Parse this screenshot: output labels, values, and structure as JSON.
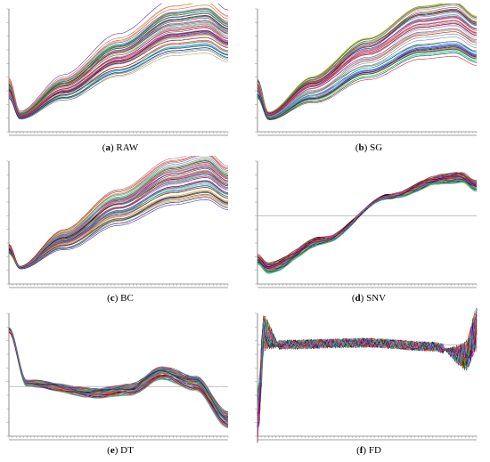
{
  "figure": {
    "panels": [
      {
        "id": "a",
        "tag": "a",
        "label": "RAW",
        "shape": "raw",
        "zero_line": false
      },
      {
        "id": "b",
        "tag": "b",
        "label": "SG",
        "shape": "raw",
        "zero_line": false
      },
      {
        "id": "c",
        "tag": "c",
        "label": "BC",
        "shape": "bc",
        "zero_line": false
      },
      {
        "id": "d",
        "tag": "d",
        "label": "SNV",
        "shape": "snv",
        "zero_line": true
      },
      {
        "id": "e",
        "tag": "e",
        "label": "DT",
        "shape": "dt",
        "zero_line": true
      },
      {
        "id": "f",
        "tag": "f",
        "label": "FD",
        "shape": "fd",
        "zero_line": true
      }
    ]
  },
  "chart_data": [
    {
      "type": "line",
      "panel": "a",
      "title": "RAW",
      "series_count": "many spectra",
      "profile": [
        [
          0,
          0.35
        ],
        [
          0.05,
          0.12
        ],
        [
          0.25,
          0.35
        ],
        [
          0.5,
          0.62
        ],
        [
          0.75,
          0.85
        ],
        [
          0.9,
          0.88
        ],
        [
          1,
          0.78
        ]
      ]
    },
    {
      "type": "line",
      "panel": "b",
      "title": "SG",
      "series_count": "many spectra",
      "profile": [
        [
          0,
          0.35
        ],
        [
          0.05,
          0.12
        ],
        [
          0.25,
          0.35
        ],
        [
          0.5,
          0.62
        ],
        [
          0.75,
          0.85
        ],
        [
          0.9,
          0.88
        ],
        [
          1,
          0.78
        ]
      ]
    },
    {
      "type": "line",
      "panel": "c",
      "title": "BC",
      "series_count": "many spectra",
      "profile": [
        [
          0,
          0.2
        ],
        [
          0.05,
          0.02
        ],
        [
          0.25,
          0.28
        ],
        [
          0.5,
          0.58
        ],
        [
          0.75,
          0.82
        ],
        [
          0.9,
          0.88
        ],
        [
          1,
          0.76
        ]
      ]
    },
    {
      "type": "line",
      "panel": "d",
      "title": "SNV",
      "series_count": "many spectra",
      "profile": [
        [
          0,
          -1.6
        ],
        [
          0.05,
          -1.9
        ],
        [
          0.3,
          -0.9
        ],
        [
          0.6,
          0.7
        ],
        [
          0.85,
          1.35
        ],
        [
          0.93,
          1.4
        ],
        [
          1,
          1.1
        ]
      ]
    },
    {
      "type": "line",
      "panel": "e",
      "title": "DT",
      "series_count": "many spectra",
      "profile": [
        [
          0,
          1.7
        ],
        [
          0.08,
          0.1
        ],
        [
          0.4,
          -0.2
        ],
        [
          0.55,
          -0.1
        ],
        [
          0.7,
          0.4
        ],
        [
          0.85,
          0.1
        ],
        [
          1,
          -1.0
        ]
      ]
    },
    {
      "type": "line",
      "panel": "f",
      "title": "FD",
      "series_count": "many spectra",
      "profile": [
        [
          0,
          -2.0
        ],
        [
          0.03,
          0.3
        ],
        [
          0.1,
          0.0
        ],
        [
          0.5,
          0.05
        ],
        [
          0.8,
          -0.05
        ],
        [
          0.95,
          -0.3
        ],
        [
          1,
          0.4
        ]
      ]
    }
  ],
  "palette": [
    "#1f77b4",
    "#d62728",
    "#2ca02c",
    "#9467bd",
    "#ff7f0e",
    "#17becf",
    "#8c564b",
    "#e377c2",
    "#7f7f7f",
    "#bcbd22",
    "#0000aa",
    "#aa0000",
    "#006400",
    "#4b0082",
    "#ff1493",
    "#00ced1",
    "#b8860b",
    "#000000"
  ]
}
